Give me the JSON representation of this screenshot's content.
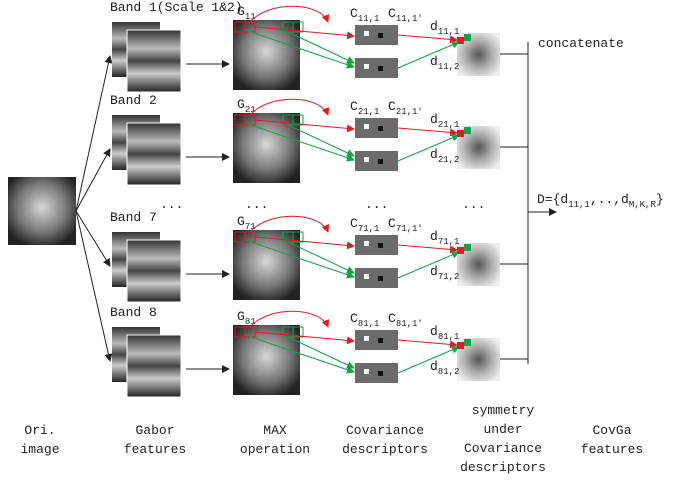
{
  "bands": [
    {
      "label": "Band 1(Scale 1&2)",
      "g": {
        "base": "G",
        "sub": "11"
      },
      "c1": {
        "base": "C",
        "sub": "11,1"
      },
      "c2": {
        "base": "C",
        "sub": "11,1'"
      },
      "d1": {
        "base": "d",
        "sub": "11,1"
      },
      "d2": {
        "base": "d",
        "sub": "11,2"
      }
    },
    {
      "label": "Band 2",
      "g": {
        "base": "G",
        "sub": "21"
      },
      "c1": {
        "base": "C",
        "sub": "21,1"
      },
      "c2": {
        "base": "C",
        "sub": "21,1'"
      },
      "d1": {
        "base": "d",
        "sub": "21,1"
      },
      "d2": {
        "base": "d",
        "sub": "21,2"
      }
    },
    {
      "label": "Band 7",
      "g": {
        "base": "G",
        "sub": "71"
      },
      "c1": {
        "base": "C",
        "sub": "71,1"
      },
      "c2": {
        "base": "C",
        "sub": "71,1'"
      },
      "d1": {
        "base": "d",
        "sub": "71,1"
      },
      "d2": {
        "base": "d",
        "sub": "71,2"
      }
    },
    {
      "label": "Band 8",
      "g": {
        "base": "G",
        "sub": "81"
      },
      "c1": {
        "base": "C",
        "sub": "81,1"
      },
      "c2": {
        "base": "C",
        "sub": "81,1'"
      },
      "d1": {
        "base": "d",
        "sub": "81,1"
      },
      "d2": {
        "base": "d",
        "sub": "81,2"
      }
    }
  ],
  "ellipses": [
    "...",
    "...",
    "...",
    "..."
  ],
  "concatenate": "concatenate",
  "result": {
    "prefix": "D={d",
    "sub1": "11,1",
    "mid": ",..,d",
    "sub2": "M,K,R",
    "suffix": "}"
  },
  "footer": [
    [
      "Ori.",
      "image"
    ],
    [
      "Gabor",
      "features"
    ],
    [
      "MAX",
      "operation"
    ],
    [
      "Covariance",
      "descriptors"
    ],
    [
      "symmetry",
      "under",
      "Covariance",
      "descriptors"
    ],
    [
      "CovGa",
      "features"
    ]
  ]
}
